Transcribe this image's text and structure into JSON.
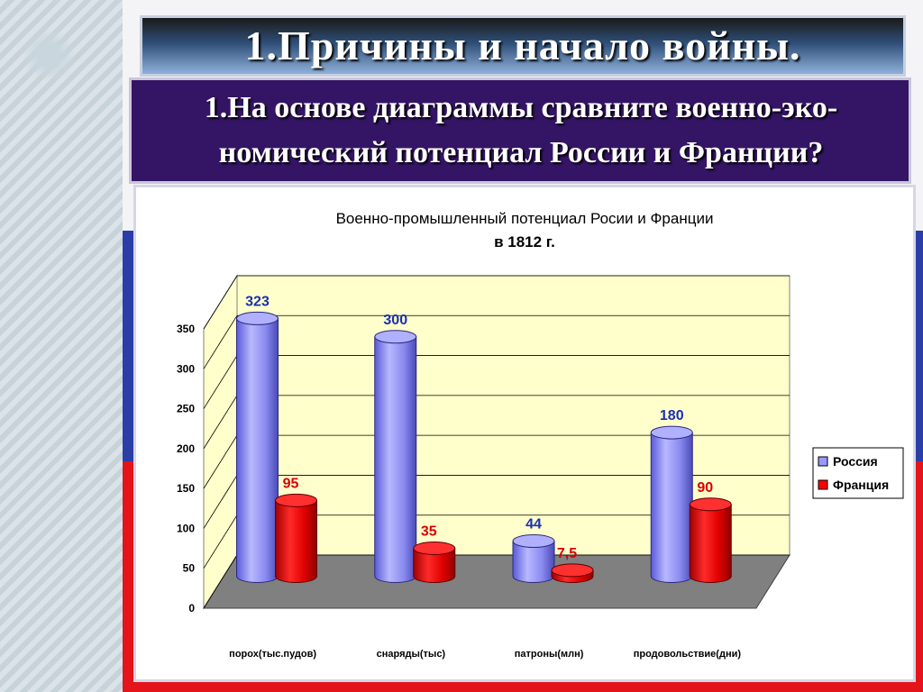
{
  "slide": {
    "title": "1.Причины и начало войны.",
    "question": "1.На основе диаграммы сравните военно-эко-номический потенциал России и Франции?",
    "question_line1": "1.На основе диаграммы сравните военно-эко-",
    "question_line2": "номический потенциал России и Франции?",
    "colors": {
      "flag_white": "#f4f4f6",
      "flag_blue": "#2b3ea8",
      "flag_red": "#e3141a",
      "question_bg": "#341565",
      "plot_bg": "#ffffcc"
    }
  },
  "chart_data": {
    "type": "bar",
    "title_line1": "Военно-промышленный потенциал Росии и Франции",
    "title_line2": "в 1812 г.",
    "categories": [
      "порох(тыс.пудов)",
      "снаряды(тыс)",
      "патроны(млн)",
      "продовольствие(дни)"
    ],
    "series": [
      {
        "name": "Россия",
        "values": [
          323,
          300,
          44,
          180
        ],
        "labels": [
          "323",
          "300",
          "44",
          "180"
        ],
        "color": "#9999ff"
      },
      {
        "name": "Франция",
        "values": [
          95,
          35,
          7.5,
          90
        ],
        "labels": [
          "95",
          "35",
          "7,5",
          "90"
        ],
        "color": "#ff0000"
      }
    ],
    "ylim": [
      0,
      350
    ],
    "yticks": [
      "0",
      "50",
      "100",
      "150",
      "200",
      "250",
      "300",
      "350"
    ],
    "grid": true,
    "legend_position": "right",
    "style": "3d-cylinder"
  }
}
